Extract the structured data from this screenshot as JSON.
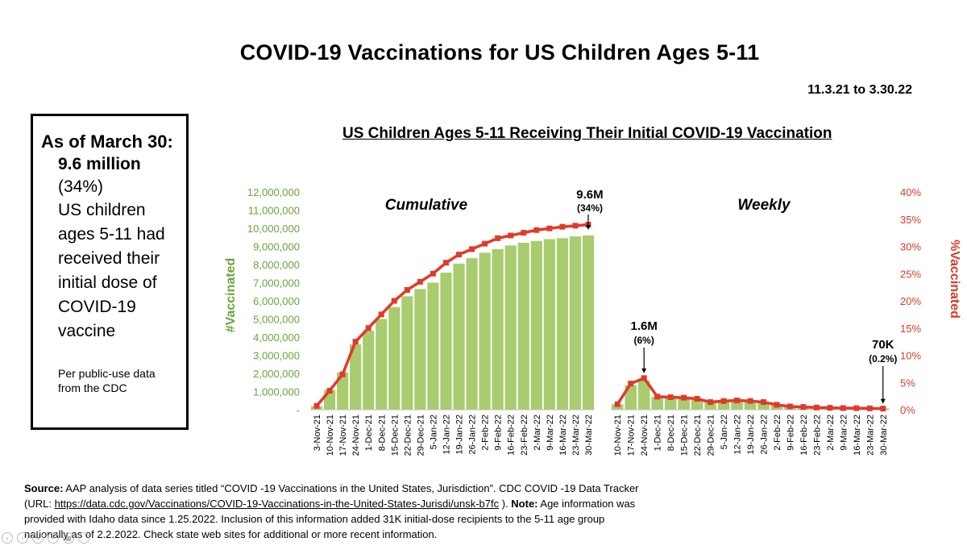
{
  "title": "COVID-19 Vaccinations for US Children Ages 5-11",
  "date_range": "11.3.21 to 3.30.22",
  "callout": {
    "as_of": "As of March 30:",
    "amount": "9.6 million",
    "percent": "(34%)",
    "body": "US children ages 5-11 had received their initial dose of COVID-19 vaccine",
    "source": "Per public-use data from the CDC"
  },
  "footnote": {
    "source_label": "Source:",
    "source_text": " AAP analysis of data series titled “COVID -19 Vaccinations in the United States, Jurisdiction”. CDC COVID -19 Data Tracker (URL: ",
    "url": "https://data.cdc.gov/Vaccinations/COVID-19-Vaccinations-in-the-United-States-Jurisdi/unsk-b7fc",
    "after_url": " ).  ",
    "note_label": "Note:",
    "note_text": " Age information was provided with Idaho data since 1.25.2022.  Inclusion of this information added 31K initial-dose recipients to the 5-11 age group nationally as of 2.2.2022.   Check state web sites for additional or more recent information."
  },
  "chart_data": {
    "title": "US Children Ages 5-11 Receiving Their Initial COVID-19 Vaccination",
    "type": "bar",
    "colors": {
      "bar": "#a8cc6e",
      "line": "#e03a2a",
      "left_axis": "#6aa33a",
      "right_axis": "#d63b2a"
    },
    "panels": [
      {
        "name": "Cumulative",
        "categories": [
          "3-Nov-21",
          "10-Nov-21",
          "17-Nov-21",
          "24-Nov-21",
          "1-Dec-21",
          "8-Dec-21",
          "15-Dec-21",
          "22-Dec-21",
          "29-Dec-21",
          "5-Jan-22",
          "12-Jan-22",
          "19-Jan-22",
          "26-Jan-22",
          "2-Feb-22",
          "9-Feb-22",
          "16-Feb-22",
          "23-Feb-22",
          "2-Mar-22",
          "9-Mar-22",
          "16-Mar-22",
          "23-Mar-22",
          "30-Mar-22"
        ],
        "values": [
          200000,
          1100000,
          2050000,
          3600000,
          4350000,
          5000000,
          5650000,
          6250000,
          6650000,
          7000000,
          7550000,
          8050000,
          8350000,
          8650000,
          8850000,
          9050000,
          9200000,
          9300000,
          9400000,
          9450000,
          9550000,
          9600000
        ],
        "percent": [
          0.7,
          3.5,
          6.5,
          12.5,
          15,
          17.5,
          20,
          22,
          23.5,
          25,
          27,
          28.5,
          29.5,
          30.5,
          31.5,
          32,
          32.5,
          33,
          33.3,
          33.6,
          33.8,
          34
        ],
        "annotation": {
          "label": "9.6M",
          "sub": "(34%)",
          "index": 21
        }
      },
      {
        "name": "Weekly",
        "categories": [
          "10-Nov-21",
          "17-Nov-21",
          "24-Nov-21",
          "1-Dec-21",
          "8-Dec-21",
          "15-Dec-21",
          "22-Dec-21",
          "29-Dec-21",
          "5-Jan-22",
          "12-Jan-22",
          "19-Jan-22",
          "26-Jan-22",
          "2-Feb-22",
          "9-Feb-22",
          "16-Feb-22",
          "23-Feb-22",
          "2-Mar-22",
          "9-Mar-22",
          "16-Mar-22",
          "23-Mar-22",
          "30-Mar-22"
        ],
        "values": [
          300000,
          1350000,
          1600000,
          700000,
          650000,
          620000,
          580000,
          420000,
          450000,
          480000,
          460000,
          400000,
          250000,
          180000,
          150000,
          120000,
          100000,
          90000,
          85000,
          75000,
          70000
        ],
        "percent": [
          1,
          4.8,
          5.8,
          2.4,
          2.3,
          2.2,
          2,
          1.4,
          1.6,
          1.7,
          1.6,
          1.4,
          0.9,
          0.6,
          0.5,
          0.4,
          0.35,
          0.3,
          0.28,
          0.25,
          0.2
        ],
        "annotations": [
          {
            "label": "1.6M",
            "sub": "(6%)",
            "index": 2
          },
          {
            "label": "70K",
            "sub": "(0.2%)",
            "index": 20
          }
        ]
      }
    ],
    "y_left": {
      "label": "#Vaccinated",
      "min": 0,
      "max": 12000000,
      "ticks": [
        "-",
        "1,000,000",
        "2,000,000",
        "3,000,000",
        "4,000,000",
        "5,000,000",
        "6,000,000",
        "7,000,000",
        "8,000,000",
        "9,000,000",
        "10,000,000",
        "11,000,000",
        "12,000,000"
      ]
    },
    "y_right": {
      "label": "%Vaccinated",
      "min": 0,
      "max": 40,
      "ticks": [
        "0%",
        "5%",
        "10%",
        "15%",
        "20%",
        "25%",
        "30%",
        "35%",
        "40%"
      ]
    }
  }
}
